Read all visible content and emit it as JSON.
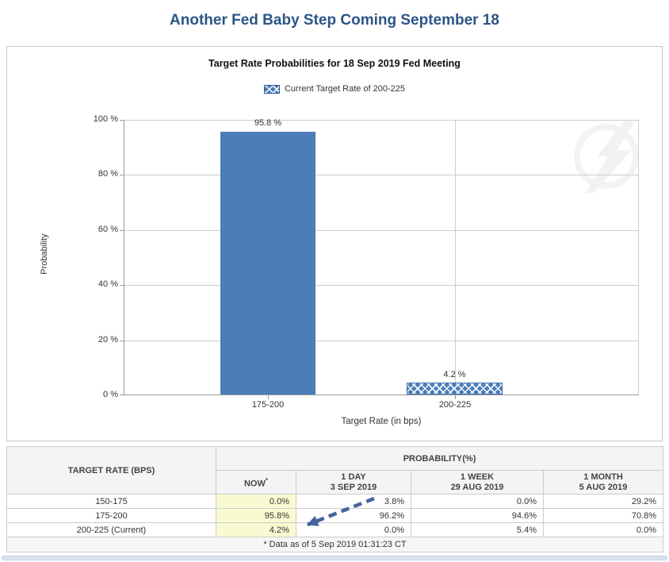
{
  "page": {
    "title": "Another Fed Baby Step Coming September 18"
  },
  "chart": {
    "title": "Target Rate Probabilities for 18 Sep 2019 Fed Meeting",
    "legend_label": "Current Target Rate of 200-225",
    "y_axis_title": "Probability",
    "x_axis_title": "Target Rate (in bps)",
    "y_ticks": [
      "100 %",
      "80 %",
      "60 %",
      "40 %",
      "20 %",
      "0 %"
    ]
  },
  "chart_data": {
    "type": "bar",
    "title": "Target Rate Probabilities for 18 Sep 2019 Fed Meeting",
    "categories": [
      "175-200",
      "200-225"
    ],
    "values": [
      95.8,
      4.2
    ],
    "value_labels": [
      "95.8 %",
      "4.2 %"
    ],
    "xlabel": "Target Rate (in bps)",
    "ylabel": "Probability",
    "ylim": [
      0,
      100
    ],
    "y_tick_interval": 20,
    "grid": true,
    "legend_position": "top-center",
    "legend": [
      {
        "label": "Current Target Rate of 200-225",
        "applies_to_category": "200-225",
        "swatch_style": "crosshatch"
      }
    ],
    "bar_styles": [
      "solid",
      "crosshatch"
    ],
    "bar_color": "#4b7db8"
  },
  "table": {
    "rate_header": "TARGET RATE (BPS)",
    "prob_header": "PROBABILITY(%)",
    "now_header": "NOW",
    "now_note_mark": "*",
    "period_headers": [
      {
        "line1": "1 DAY",
        "line2": "3 SEP 2019"
      },
      {
        "line1": "1 WEEK",
        "line2": "29 AUG 2019"
      },
      {
        "line1": "1 MONTH",
        "line2": "5 AUG 2019"
      }
    ],
    "rows": [
      {
        "label": "150-175",
        "now": "0.0%",
        "day1": "3.8%",
        "week1": "0.0%",
        "month1": "29.2%"
      },
      {
        "label": "175-200",
        "now": "95.8%",
        "day1": "96.2%",
        "week1": "94.6%",
        "month1": "70.8%"
      },
      {
        "label": "200-225 (Current)",
        "now": "4.2%",
        "day1": "0.0%",
        "week1": "5.4%",
        "month1": "0.0%"
      }
    ],
    "footnote": "* Data as of 5 Sep 2019 01:31:23 CT"
  },
  "annotation": {
    "arrow": "dashed arrow from 1-day 3.8% cell to current NOW 4.2% cell"
  },
  "colors": {
    "title_blue": "#2b5687",
    "bar_blue": "#4b7db8",
    "now_column_bg": "#fafad2",
    "arrow_blue": "#44639f",
    "grid_gray": "#cdcdcd"
  }
}
